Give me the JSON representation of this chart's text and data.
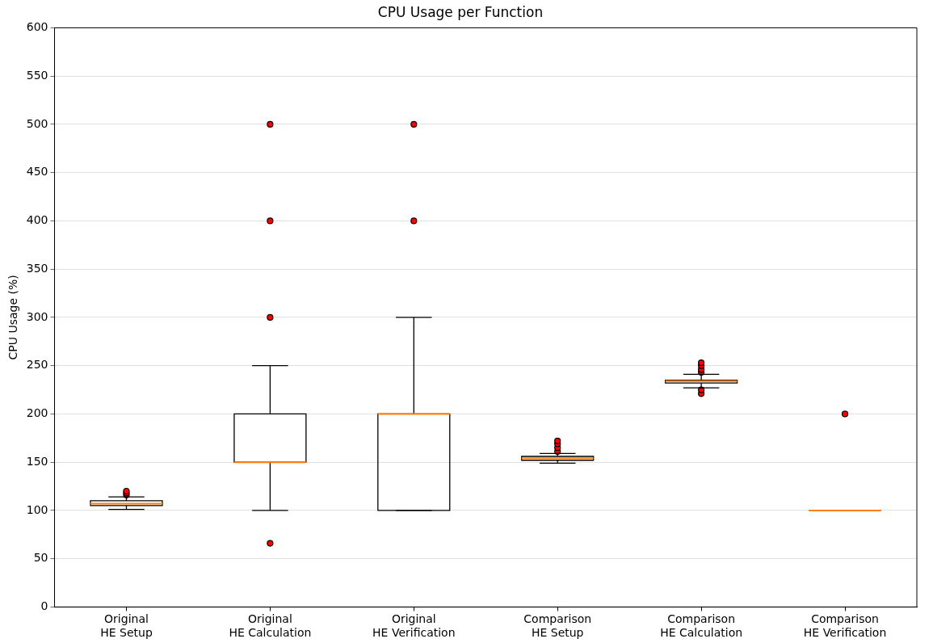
{
  "chart_data": {
    "type": "box",
    "title": "CPU Usage per Function",
    "ylabel": "CPU Usage (%)",
    "categories": [
      "Original\nHE Setup",
      "Original\nHE Calculation",
      "Original\nHE Verification",
      "Comparison\nHE Setup",
      "Comparison\nHE Calculation",
      "Comparison\nHE Verification"
    ],
    "boxes": [
      {
        "low": 101,
        "q1": 105,
        "median": 107,
        "q3": 110,
        "high": 114,
        "outliers": [
          116,
          118,
          120
        ]
      },
      {
        "low": 100,
        "q1": 150,
        "median": 150,
        "q3": 200,
        "high": 250,
        "outliers": [
          66,
          300,
          400,
          500
        ]
      },
      {
        "low": 100,
        "q1": 100,
        "median": 200,
        "q3": 200,
        "high": 300,
        "outliers": [
          400,
          500
        ]
      },
      {
        "low": 149,
        "q1": 152,
        "median": 154,
        "q3": 156,
        "high": 159,
        "outliers": [
          161,
          165,
          169,
          172
        ]
      },
      {
        "low": 227,
        "q1": 232,
        "median": 234,
        "q3": 235,
        "high": 241,
        "outliers": [
          221,
          225,
          243,
          246,
          250,
          253
        ]
      },
      {
        "low": 100,
        "q1": 100,
        "median": 100,
        "q3": 100,
        "high": 100,
        "outliers": [
          200
        ]
      }
    ],
    "ylim": [
      0,
      600
    ],
    "yticks": [
      0,
      50,
      100,
      150,
      200,
      250,
      300,
      350,
      400,
      450,
      500,
      550,
      600
    ],
    "grid": "y",
    "legend": false,
    "marker": "circle"
  }
}
